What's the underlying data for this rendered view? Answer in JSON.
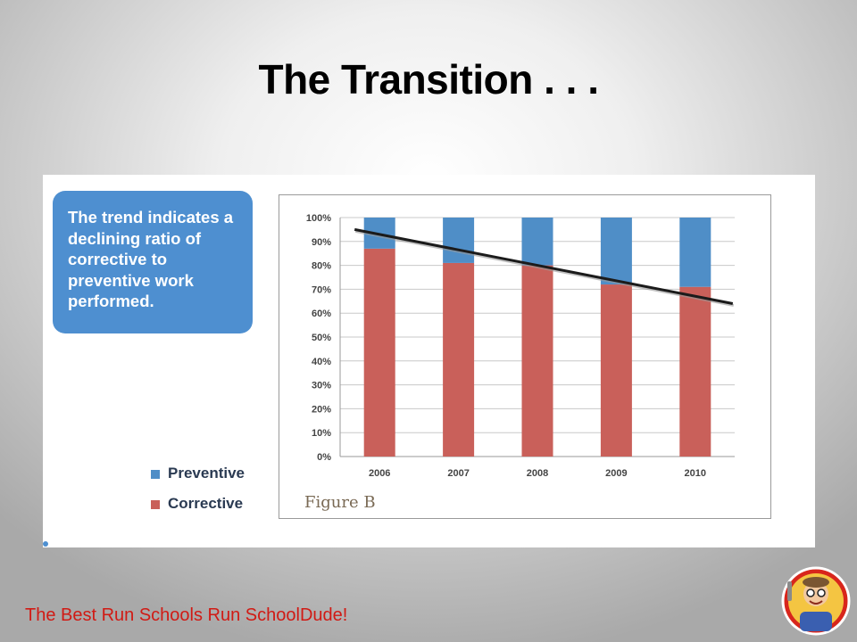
{
  "slide": {
    "title": "The Transition . . .",
    "footer": "The Best Run Schools Run SchoolDude!"
  },
  "callout": {
    "text": "The trend indicates a declining ratio of corrective to preventive work performed."
  },
  "legend": [
    {
      "label": "Preventive",
      "color": "#4f8ec7"
    },
    {
      "label": "Corrective",
      "color": "#c9605a"
    }
  ],
  "figure_caption": "Figure B",
  "colors": {
    "preventive": "#4f8ec7",
    "corrective": "#c9605a",
    "trendline": "#1b1b1b",
    "callout_bg": "#4e8fd0",
    "footer_text": "#d11a14"
  },
  "chart_data": {
    "type": "bar",
    "stacked": true,
    "categories": [
      "2006",
      "2007",
      "2008",
      "2009",
      "2010"
    ],
    "series": [
      {
        "name": "Corrective",
        "values": [
          87,
          81,
          80,
          72,
          71
        ]
      },
      {
        "name": "Preventive",
        "values": [
          13,
          19,
          20,
          28,
          29
        ]
      }
    ],
    "y_ticks": [
      "0%",
      "10%",
      "20%",
      "30%",
      "40%",
      "50%",
      "60%",
      "70%",
      "80%",
      "90%",
      "100%"
    ],
    "ylim": [
      0,
      100
    ],
    "grid": true,
    "trendline": {
      "start": {
        "x": "2006",
        "y": 95
      },
      "end": {
        "x": "2010",
        "y": 64
      }
    },
    "legend_position": "left"
  }
}
